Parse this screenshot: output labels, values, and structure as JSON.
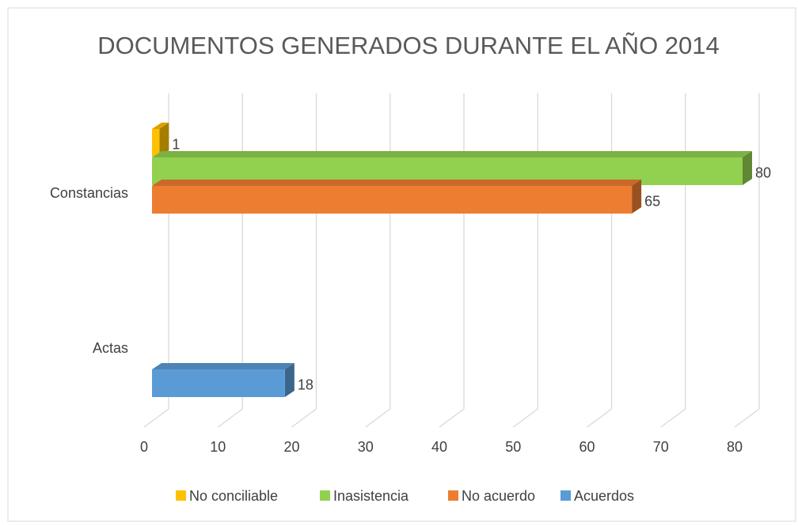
{
  "chart_data": {
    "type": "bar3d",
    "orientation": "horizontal",
    "title": "DOCUMENTOS GENERADOS DURANTE EL AÑO 2014",
    "categories": [
      "Constancias",
      "Actas"
    ],
    "series": [
      {
        "name": "No conciliable",
        "color": "#ffc000",
        "values": [
          1,
          null
        ]
      },
      {
        "name": "Inasistencia",
        "color": "#92d050",
        "values": [
          80,
          null
        ]
      },
      {
        "name": "No acuerdo",
        "color": "#ed7d31",
        "values": [
          65,
          null
        ]
      },
      {
        "name": "Acuerdos",
        "color": "#5b9bd5",
        "values": [
          null,
          18
        ]
      }
    ],
    "xlim": [
      0,
      80
    ],
    "xticks": [
      0,
      10,
      20,
      30,
      40,
      50,
      60,
      70,
      80
    ],
    "grid": true,
    "legend": "bottom"
  }
}
